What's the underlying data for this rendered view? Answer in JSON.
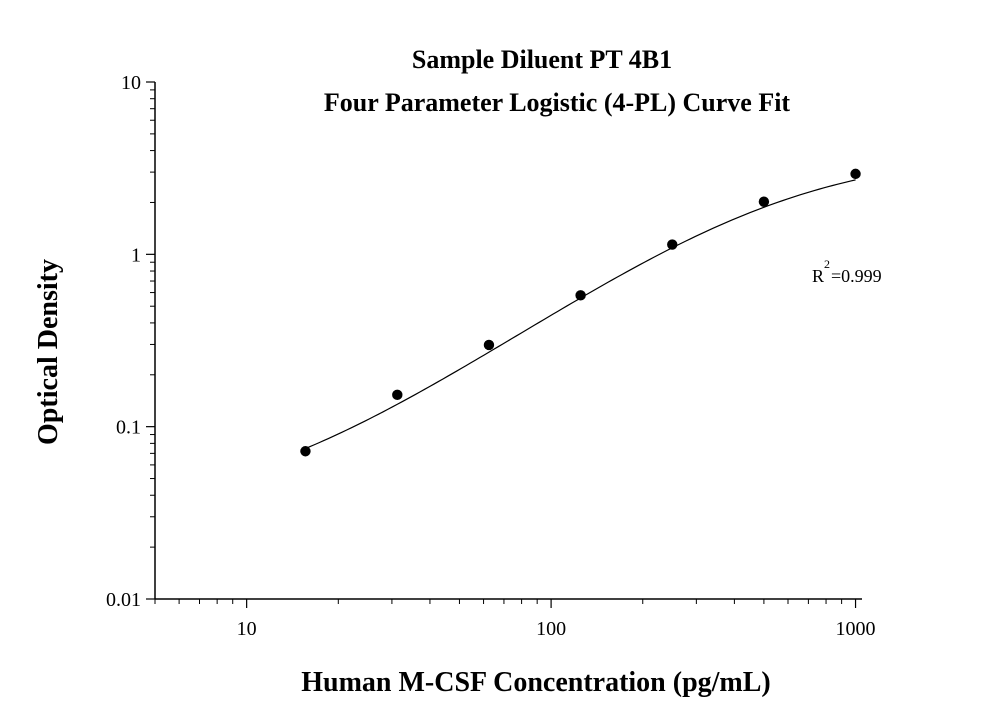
{
  "chart_data": {
    "type": "scatter",
    "title": "Sample Diluent PT 4B1",
    "subtitle": "Four Parameter Logistic (4-PL) Curve Fit",
    "xlabel": "Human M-CSF  Concentration (pg/mL)",
    "ylabel": "Optical Density",
    "xscale": "log",
    "yscale": "log",
    "xlim": [
      5,
      1050
    ],
    "ylim": [
      0.01,
      10
    ],
    "x_ticks": [
      {
        "value": 10,
        "label": "10"
      },
      {
        "value": 100,
        "label": "100"
      },
      {
        "value": 1000,
        "label": "1000"
      }
    ],
    "y_ticks": [
      {
        "value": 0.01,
        "label": "0.01"
      },
      {
        "value": 0.1,
        "label": "0.1"
      },
      {
        "value": 1,
        "label": "1"
      },
      {
        "value": 10,
        "label": "10"
      }
    ],
    "series": [
      {
        "points": [
          {
            "x": 15.6,
            "y": 0.072
          },
          {
            "x": 31.25,
            "y": 0.153
          },
          {
            "x": 62.5,
            "y": 0.298
          },
          {
            "x": 125,
            "y": 0.578
          },
          {
            "x": 250,
            "y": 1.14
          },
          {
            "x": 500,
            "y": 2.02
          },
          {
            "x": 1000,
            "y": 2.93
          }
        ]
      }
    ],
    "fit_curve": {
      "model": "4PL",
      "A": 0.03,
      "D": 4.0,
      "C": 560,
      "B": 1.25,
      "x_range": [
        15.6,
        1000
      ]
    },
    "annotation": {
      "base": "R",
      "superscript": "2",
      "value_text": "=0.999"
    },
    "grid": false,
    "legend": "none"
  }
}
